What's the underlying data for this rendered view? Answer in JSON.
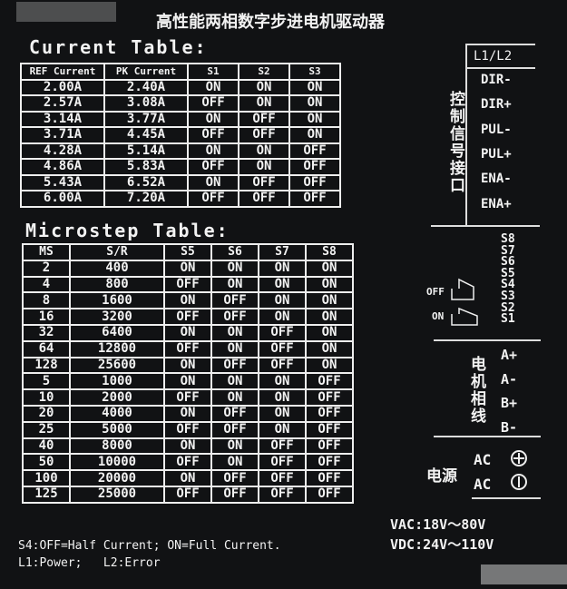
{
  "header": {
    "title": "高性能两相数字步进电机驱动器"
  },
  "current_table": {
    "title": "Current Table:",
    "columns": [
      "REF Current",
      "PK Current",
      "S1",
      "S2",
      "S3"
    ],
    "rows": [
      [
        "2.00A",
        "2.40A",
        "ON",
        "ON",
        "ON"
      ],
      [
        "2.57A",
        "3.08A",
        "OFF",
        "ON",
        "ON"
      ],
      [
        "3.14A",
        "3.77A",
        "ON",
        "OFF",
        "ON"
      ],
      [
        "3.71A",
        "4.45A",
        "OFF",
        "OFF",
        "ON"
      ],
      [
        "4.28A",
        "5.14A",
        "ON",
        "ON",
        "OFF"
      ],
      [
        "4.86A",
        "5.83A",
        "OFF",
        "ON",
        "OFF"
      ],
      [
        "5.43A",
        "6.52A",
        "ON",
        "OFF",
        "OFF"
      ],
      [
        "6.00A",
        "7.20A",
        "OFF",
        "OFF",
        "OFF"
      ]
    ]
  },
  "microstep_table": {
    "title": "Microstep Table:",
    "columns": [
      "MS",
      "S/R",
      "S5",
      "S6",
      "S7",
      "S8"
    ],
    "rows": [
      [
        "2",
        "400",
        "ON",
        "ON",
        "ON",
        "ON"
      ],
      [
        "4",
        "800",
        "OFF",
        "ON",
        "ON",
        "ON"
      ],
      [
        "8",
        "1600",
        "ON",
        "OFF",
        "ON",
        "ON"
      ],
      [
        "16",
        "3200",
        "OFF",
        "OFF",
        "ON",
        "ON"
      ],
      [
        "32",
        "6400",
        "ON",
        "ON",
        "OFF",
        "ON"
      ],
      [
        "64",
        "12800",
        "OFF",
        "ON",
        "OFF",
        "ON"
      ],
      [
        "128",
        "25600",
        "ON",
        "OFF",
        "OFF",
        "ON"
      ],
      [
        "5",
        "1000",
        "ON",
        "ON",
        "ON",
        "OFF"
      ],
      [
        "10",
        "2000",
        "OFF",
        "ON",
        "ON",
        "OFF"
      ],
      [
        "20",
        "4000",
        "ON",
        "OFF",
        "ON",
        "OFF"
      ],
      [
        "25",
        "5000",
        "OFF",
        "OFF",
        "ON",
        "OFF"
      ],
      [
        "40",
        "8000",
        "ON",
        "ON",
        "OFF",
        "OFF"
      ],
      [
        "50",
        "10000",
        "OFF",
        "ON",
        "OFF",
        "OFF"
      ],
      [
        "100",
        "20000",
        "ON",
        "OFF",
        "OFF",
        "OFF"
      ],
      [
        "125",
        "25000",
        "OFF",
        "OFF",
        "OFF",
        "OFF"
      ]
    ]
  },
  "notes": [
    "S4:OFF=Half Current; ON=Full Current.",
    "L1:Power;   L2:Error"
  ],
  "panel": {
    "led_label": "L1/L2",
    "signal_label": "控制信号接口",
    "signals": [
      "DIR-",
      "DIR+",
      "PUL-",
      "PUL+",
      "ENA-",
      "ENA+"
    ],
    "switches": [
      "S8",
      "S7",
      "S6",
      "S5",
      "S4",
      "S3",
      "S2",
      "S1"
    ],
    "switch_off": "OFF",
    "switch_on": "ON",
    "motor_label": "电机相线",
    "motor_pins": [
      "A+",
      "A-",
      "B+",
      "B-"
    ],
    "power_label": "电源",
    "power_pins": [
      "AC",
      "AC"
    ],
    "voltages": [
      "VAC:18V～80V",
      "VDC:24V～110V"
    ]
  }
}
